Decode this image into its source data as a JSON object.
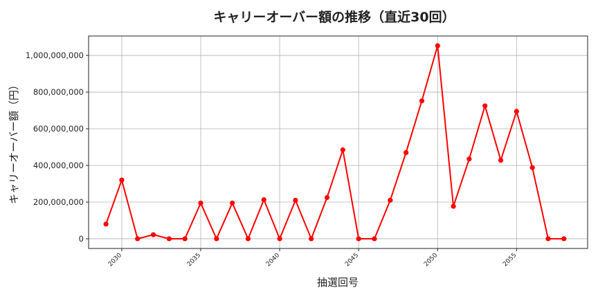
{
  "chart_data": {
    "type": "line",
    "title": "キャリーオーバー額の推移（直近30回）",
    "xlabel": "抽選回号",
    "ylabel": "キャリーオーバー額（円）",
    "x": [
      2029,
      2030,
      2031,
      2032,
      2033,
      2034,
      2035,
      2036,
      2037,
      2038,
      2039,
      2040,
      2041,
      2042,
      2043,
      2044,
      2045,
      2046,
      2047,
      2048,
      2049,
      2050,
      2051,
      2052,
      2053,
      2054,
      2055,
      2056,
      2057,
      2058
    ],
    "series": [
      {
        "color": "#ff0000",
        "values": [
          80000000,
          320000000,
          0,
          22000000,
          0,
          0,
          195000000,
          0,
          195000000,
          0,
          213000000,
          0,
          210000000,
          0,
          225000000,
          485000000,
          0,
          0,
          210000000,
          470000000,
          752000000,
          1053000000,
          177000000,
          435000000,
          725000000,
          428000000,
          695000000,
          388000000,
          0,
          0
        ]
      }
    ],
    "xticks": [
      "2030",
      "2035",
      "2040",
      "2045",
      "2050",
      "2055"
    ],
    "yticks": [
      "0",
      "200,000,000",
      "400,000,000",
      "600,000,000",
      "800,000,000",
      "1,000,000,000"
    ],
    "xlim": [
      2027.9,
      2059.5
    ],
    "ylim": [
      -53000000,
      1106000000
    ],
    "grid": true,
    "marker": "circle"
  }
}
